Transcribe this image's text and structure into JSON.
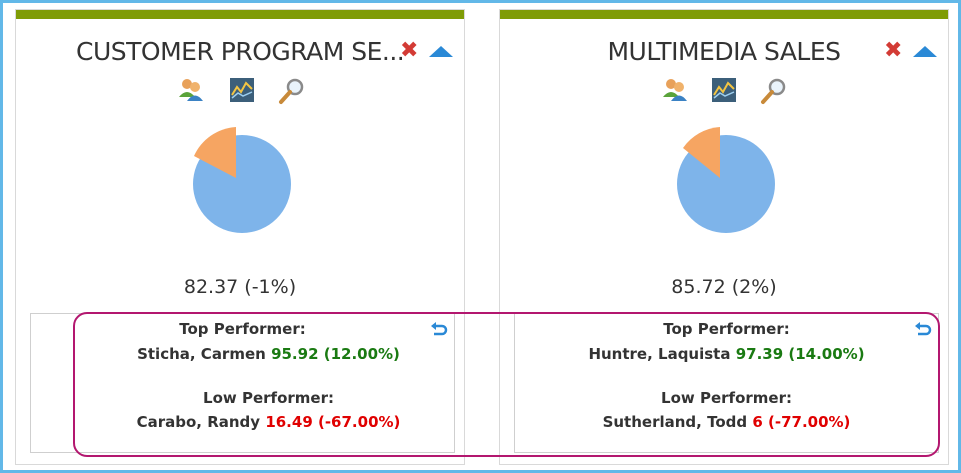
{
  "cards": [
    {
      "title": "CUSTOMER PROGRAM SE...",
      "score": "82.37 (-1%)",
      "pie_fraction_small": 0.18,
      "top_label": "Top Performer:",
      "top_name": "Sticha, Carmen",
      "top_value": "95.92 (12.00%)",
      "low_label": "Low Performer:",
      "low_name": "Carabo, Randy",
      "low_value": "16.49 (-67.00%)"
    },
    {
      "title": "MULTIMEDIA SALES",
      "score": "85.72 (2%)",
      "pie_fraction_small": 0.15,
      "top_label": "Top Performer:",
      "top_name": "Huntre, Laquista",
      "top_value": "97.39 (14.00%)",
      "low_label": "Low Performer:",
      "low_name": "Sutherland, Todd",
      "low_value": "6 (-77.00%)"
    }
  ],
  "colors": {
    "header_bar": "#7f9c05",
    "pie_main": "#7eb4ea",
    "pie_slice": "#f6a562",
    "positive": "#1a7a12",
    "negative": "#e00000",
    "highlight": "#b3176f",
    "frame": "#62b8e8"
  },
  "icons": [
    "users-icon",
    "chart-icon",
    "magnifier-icon",
    "close-icon",
    "collapse-icon",
    "undo-icon"
  ]
}
